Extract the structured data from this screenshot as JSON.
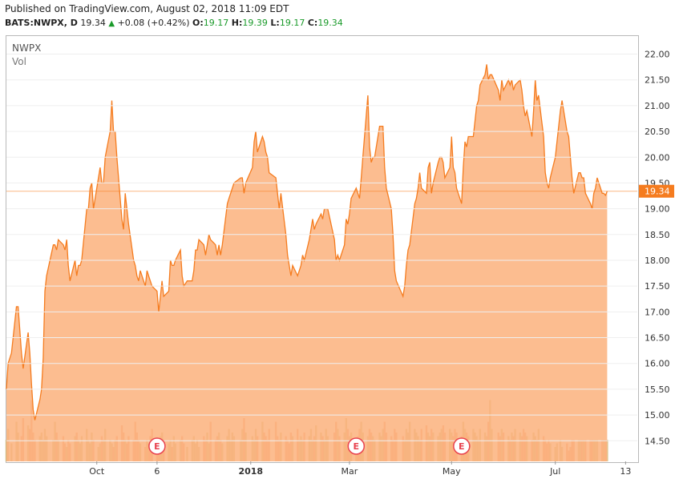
{
  "header": {
    "published": "Published on TradingView.com, August 02, 2018 11:09 EDT",
    "symbol": "BATS:NWPX, D",
    "last": "19.34",
    "arrow": "▲",
    "change": "+0.08 (+0.42%)",
    "o_label": "O:",
    "o_value": "19.17",
    "h_label": "H:",
    "h_value": "19.39",
    "l_label": "L:",
    "l_value": "19.17",
    "c_label": "C:",
    "c_value": "19.34"
  },
  "legend": {
    "symbol": "NWPX",
    "volume": "Vol"
  },
  "colors": {
    "line": "#f57c1f",
    "area": "#fbb27c",
    "vol_up": "#d3b878",
    "vol_down": "#f39a73",
    "label_bg": "#f57c1f",
    "earnings": "#e8434f"
  },
  "chart_data": {
    "type": "area",
    "title": "",
    "ylim": [
      14.1,
      22.35
    ],
    "yticks": [
      14.5,
      15.0,
      15.5,
      16.0,
      16.5,
      17.0,
      17.5,
      18.0,
      18.5,
      19.0,
      19.5,
      20.0,
      20.5,
      21.0,
      21.5,
      22.0
    ],
    "ytick_labels": [
      "14.50",
      "15.00",
      "15.50",
      "16.00",
      "16.50",
      "17.00",
      "17.50",
      "18.00",
      "18.50",
      "19.00",
      "19.50",
      "20.00",
      "20.50",
      "21.00",
      "21.50",
      "22.00"
    ],
    "x_start": "2017-08-08",
    "x_end": "2018-08-20",
    "x_ticks": [
      {
        "date": "2017-10-01",
        "label": "Oct",
        "bold": false
      },
      {
        "date": "2017-11-06",
        "label": "6",
        "bold": false
      },
      {
        "date": "2018-01-01",
        "label": "2018",
        "bold": true
      },
      {
        "date": "2018-03-01",
        "label": "Mar",
        "bold": false
      },
      {
        "date": "2018-05-01",
        "label": "May",
        "bold": false
      },
      {
        "date": "2018-07-02",
        "label": "Jul",
        "bold": false
      },
      {
        "date": "2018-08-13",
        "label": "13",
        "bold": false
      }
    ],
    "last_value": 19.34,
    "last_label": "19.34",
    "earnings_dates": [
      "2017-11-06",
      "2018-03-05",
      "2018-05-07"
    ],
    "earnings_label": "E",
    "price": [
      [
        "2017-08-08",
        15.5
      ],
      [
        "2017-08-09",
        16.0
      ],
      [
        "2017-08-11",
        16.2
      ],
      [
        "2017-08-14",
        17.1
      ],
      [
        "2017-08-15",
        17.1
      ],
      [
        "2017-08-17",
        16.2
      ],
      [
        "2017-08-18",
        15.9
      ],
      [
        "2017-08-21",
        16.6
      ],
      [
        "2017-08-22",
        16.2
      ],
      [
        "2017-08-23",
        15.6
      ],
      [
        "2017-08-24",
        15.1
      ],
      [
        "2017-08-25",
        14.9
      ],
      [
        "2017-08-28",
        15.3
      ],
      [
        "2017-08-29",
        15.5
      ],
      [
        "2017-08-30",
        16.1
      ],
      [
        "2017-08-31",
        17.4
      ],
      [
        "2017-09-01",
        17.7
      ],
      [
        "2017-09-05",
        18.3
      ],
      [
        "2017-09-06",
        18.3
      ],
      [
        "2017-09-07",
        18.2
      ],
      [
        "2017-09-08",
        18.4
      ],
      [
        "2017-09-11",
        18.3
      ],
      [
        "2017-09-12",
        18.2
      ],
      [
        "2017-09-13",
        18.4
      ],
      [
        "2017-09-14",
        17.9
      ],
      [
        "2017-09-15",
        17.6
      ],
      [
        "2017-09-18",
        18.0
      ],
      [
        "2017-09-19",
        17.7
      ],
      [
        "2017-09-20",
        17.9
      ],
      [
        "2017-09-21",
        17.9
      ],
      [
        "2017-09-22",
        18.0
      ],
      [
        "2017-09-25",
        19.0
      ],
      [
        "2017-09-26",
        19.0
      ],
      [
        "2017-09-27",
        19.4
      ],
      [
        "2017-09-28",
        19.5
      ],
      [
        "2017-09-29",
        19.0
      ],
      [
        "2017-10-02",
        19.6
      ],
      [
        "2017-10-03",
        19.8
      ],
      [
        "2017-10-04",
        19.5
      ],
      [
        "2017-10-05",
        19.5
      ],
      [
        "2017-10-06",
        20.0
      ],
      [
        "2017-10-09",
        20.5
      ],
      [
        "2017-10-10",
        21.1
      ],
      [
        "2017-10-11",
        20.5
      ],
      [
        "2017-10-12",
        20.5
      ],
      [
        "2017-10-13",
        20.0
      ],
      [
        "2017-10-16",
        18.8
      ],
      [
        "2017-10-17",
        18.6
      ],
      [
        "2017-10-18",
        19.3
      ],
      [
        "2017-10-19",
        19.0
      ],
      [
        "2017-10-20",
        18.7
      ],
      [
        "2017-10-23",
        18.0
      ],
      [
        "2017-10-24",
        17.9
      ],
      [
        "2017-10-25",
        17.7
      ],
      [
        "2017-10-26",
        17.6
      ],
      [
        "2017-10-27",
        17.8
      ],
      [
        "2017-10-30",
        17.5
      ],
      [
        "2017-10-31",
        17.8
      ],
      [
        "2017-11-01",
        17.7
      ],
      [
        "2017-11-02",
        17.6
      ],
      [
        "2017-11-03",
        17.5
      ],
      [
        "2017-11-06",
        17.4
      ],
      [
        "2017-11-07",
        17.0
      ],
      [
        "2017-11-08",
        17.3
      ],
      [
        "2017-11-09",
        17.6
      ],
      [
        "2017-11-10",
        17.3
      ],
      [
        "2017-11-13",
        17.4
      ],
      [
        "2017-11-14",
        18.0
      ],
      [
        "2017-11-15",
        17.9
      ],
      [
        "2017-11-16",
        17.9
      ],
      [
        "2017-11-17",
        18.0
      ],
      [
        "2017-11-20",
        18.2
      ],
      [
        "2017-11-21",
        17.7
      ],
      [
        "2017-11-22",
        17.5
      ],
      [
        "2017-11-24",
        17.6
      ],
      [
        "2017-11-27",
        17.6
      ],
      [
        "2017-11-28",
        17.8
      ],
      [
        "2017-11-29",
        18.2
      ],
      [
        "2017-11-30",
        18.2
      ],
      [
        "2017-12-01",
        18.4
      ],
      [
        "2017-12-04",
        18.3
      ],
      [
        "2017-12-05",
        18.1
      ],
      [
        "2017-12-06",
        18.3
      ],
      [
        "2017-12-07",
        18.5
      ],
      [
        "2017-12-08",
        18.4
      ],
      [
        "2017-12-11",
        18.3
      ],
      [
        "2017-12-12",
        18.1
      ],
      [
        "2017-12-13",
        18.3
      ],
      [
        "2017-12-14",
        18.1
      ],
      [
        "2017-12-15",
        18.3
      ],
      [
        "2017-12-18",
        19.1
      ],
      [
        "2017-12-19",
        19.2
      ],
      [
        "2017-12-20",
        19.3
      ],
      [
        "2017-12-21",
        19.4
      ],
      [
        "2017-12-22",
        19.5
      ],
      [
        "2017-12-26",
        19.6
      ],
      [
        "2017-12-27",
        19.6
      ],
      [
        "2017-12-28",
        19.3
      ],
      [
        "2017-12-29",
        19.5
      ],
      [
        "2018-01-02",
        19.8
      ],
      [
        "2018-01-03",
        20.3
      ],
      [
        "2018-01-04",
        20.5
      ],
      [
        "2018-01-05",
        20.1
      ],
      [
        "2018-01-08",
        20.4
      ],
      [
        "2018-01-09",
        20.3
      ],
      [
        "2018-01-10",
        20.1
      ],
      [
        "2018-01-11",
        20.0
      ],
      [
        "2018-01-12",
        19.7
      ],
      [
        "2018-01-16",
        19.6
      ],
      [
        "2018-01-17",
        19.3
      ],
      [
        "2018-01-18",
        19.0
      ],
      [
        "2018-01-19",
        19.3
      ],
      [
        "2018-01-22",
        18.5
      ],
      [
        "2018-01-23",
        18.1
      ],
      [
        "2018-01-24",
        17.9
      ],
      [
        "2018-01-25",
        17.7
      ],
      [
        "2018-01-26",
        17.9
      ],
      [
        "2018-01-29",
        17.7
      ],
      [
        "2018-01-30",
        17.8
      ],
      [
        "2018-01-31",
        17.9
      ],
      [
        "2018-02-01",
        18.1
      ],
      [
        "2018-02-02",
        18.0
      ],
      [
        "2018-02-05",
        18.4
      ],
      [
        "2018-02-06",
        18.6
      ],
      [
        "2018-02-07",
        18.8
      ],
      [
        "2018-02-08",
        18.6
      ],
      [
        "2018-02-09",
        18.7
      ],
      [
        "2018-02-12",
        18.9
      ],
      [
        "2018-02-13",
        18.8
      ],
      [
        "2018-02-14",
        19.0
      ],
      [
        "2018-02-15",
        19.0
      ],
      [
        "2018-02-16",
        19.0
      ],
      [
        "2018-02-20",
        18.4
      ],
      [
        "2018-02-21",
        18.0
      ],
      [
        "2018-02-22",
        18.1
      ],
      [
        "2018-02-23",
        18.0
      ],
      [
        "2018-02-26",
        18.3
      ],
      [
        "2018-02-27",
        18.8
      ],
      [
        "2018-02-28",
        18.7
      ],
      [
        "2018-03-01",
        18.9
      ],
      [
        "2018-03-02",
        19.2
      ],
      [
        "2018-03-05",
        19.4
      ],
      [
        "2018-03-06",
        19.3
      ],
      [
        "2018-03-07",
        19.2
      ],
      [
        "2018-03-08",
        19.6
      ],
      [
        "2018-03-09",
        20.0
      ],
      [
        "2018-03-12",
        21.2
      ],
      [
        "2018-03-13",
        20.2
      ],
      [
        "2018-03-14",
        19.9
      ],
      [
        "2018-03-15",
        20.0
      ],
      [
        "2018-03-16",
        20.0
      ],
      [
        "2018-03-19",
        20.6
      ],
      [
        "2018-03-20",
        20.6
      ],
      [
        "2018-03-21",
        20.6
      ],
      [
        "2018-03-22",
        19.8
      ],
      [
        "2018-03-23",
        19.4
      ],
      [
        "2018-03-26",
        19.0
      ],
      [
        "2018-03-27",
        18.5
      ],
      [
        "2018-03-28",
        17.8
      ],
      [
        "2018-03-29",
        17.6
      ],
      [
        "2018-04-02",
        17.3
      ],
      [
        "2018-04-03",
        17.5
      ],
      [
        "2018-04-04",
        17.9
      ],
      [
        "2018-04-05",
        18.2
      ],
      [
        "2018-04-06",
        18.3
      ],
      [
        "2018-04-09",
        19.1
      ],
      [
        "2018-04-10",
        19.2
      ],
      [
        "2018-04-11",
        19.4
      ],
      [
        "2018-04-12",
        19.7
      ],
      [
        "2018-04-13",
        19.4
      ],
      [
        "2018-04-16",
        19.3
      ],
      [
        "2018-04-17",
        19.8
      ],
      [
        "2018-04-18",
        19.9
      ],
      [
        "2018-04-19",
        19.3
      ],
      [
        "2018-04-20",
        19.5
      ],
      [
        "2018-04-23",
        19.9
      ],
      [
        "2018-04-24",
        20.0
      ],
      [
        "2018-04-25",
        20.0
      ],
      [
        "2018-04-26",
        19.9
      ],
      [
        "2018-04-27",
        19.6
      ],
      [
        "2018-04-30",
        19.8
      ],
      [
        "2018-05-01",
        20.4
      ],
      [
        "2018-05-02",
        19.8
      ],
      [
        "2018-05-03",
        19.7
      ],
      [
        "2018-05-04",
        19.4
      ],
      [
        "2018-05-07",
        19.1
      ],
      [
        "2018-05-08",
        19.8
      ],
      [
        "2018-05-09",
        20.3
      ],
      [
        "2018-05-10",
        20.2
      ],
      [
        "2018-05-11",
        20.4
      ],
      [
        "2018-05-14",
        20.4
      ],
      [
        "2018-05-15",
        20.7
      ],
      [
        "2018-05-16",
        21.0
      ],
      [
        "2018-05-17",
        21.1
      ],
      [
        "2018-05-18",
        21.4
      ],
      [
        "2018-05-21",
        21.6
      ],
      [
        "2018-05-22",
        21.8
      ],
      [
        "2018-05-23",
        21.5
      ],
      [
        "2018-05-24",
        21.6
      ],
      [
        "2018-05-25",
        21.6
      ],
      [
        "2018-05-29",
        21.3
      ],
      [
        "2018-05-30",
        21.1
      ],
      [
        "2018-05-31",
        21.5
      ],
      [
        "2018-06-01",
        21.3
      ],
      [
        "2018-06-04",
        21.5
      ],
      [
        "2018-06-05",
        21.4
      ],
      [
        "2018-06-06",
        21.5
      ],
      [
        "2018-06-07",
        21.3
      ],
      [
        "2018-06-08",
        21.4
      ],
      [
        "2018-06-11",
        21.5
      ],
      [
        "2018-06-12",
        21.3
      ],
      [
        "2018-06-13",
        21.0
      ],
      [
        "2018-06-14",
        20.8
      ],
      [
        "2018-06-15",
        20.9
      ],
      [
        "2018-06-18",
        20.4
      ],
      [
        "2018-06-19",
        20.9
      ],
      [
        "2018-06-20",
        21.5
      ],
      [
        "2018-06-21",
        21.1
      ],
      [
        "2018-06-22",
        21.2
      ],
      [
        "2018-06-25",
        20.4
      ],
      [
        "2018-06-26",
        19.7
      ],
      [
        "2018-06-27",
        19.5
      ],
      [
        "2018-06-28",
        19.4
      ],
      [
        "2018-06-29",
        19.6
      ],
      [
        "2018-07-02",
        20.0
      ],
      [
        "2018-07-03",
        20.3
      ],
      [
        "2018-07-05",
        20.9
      ],
      [
        "2018-07-06",
        21.1
      ],
      [
        "2018-07-09",
        20.5
      ],
      [
        "2018-07-10",
        20.4
      ],
      [
        "2018-07-11",
        20.0
      ],
      [
        "2018-07-12",
        19.6
      ],
      [
        "2018-07-13",
        19.3
      ],
      [
        "2018-07-16",
        19.7
      ],
      [
        "2018-07-17",
        19.7
      ],
      [
        "2018-07-18",
        19.6
      ],
      [
        "2018-07-19",
        19.6
      ],
      [
        "2018-07-20",
        19.3
      ],
      [
        "2018-07-23",
        19.1
      ],
      [
        "2018-07-24",
        19.0
      ],
      [
        "2018-07-25",
        19.3
      ],
      [
        "2018-07-26",
        19.4
      ],
      [
        "2018-07-27",
        19.6
      ],
      [
        "2018-07-30",
        19.3
      ],
      [
        "2018-07-31",
        19.3
      ],
      [
        "2018-08-01",
        19.26
      ],
      [
        "2018-08-02",
        19.34
      ]
    ],
    "volume_rel": [
      0.3,
      0.45,
      0.25,
      0.55,
      0.4,
      0.35,
      0.6,
      0.5,
      0.45,
      0.85,
      0.4,
      0.3,
      0.35,
      0.4,
      0.3,
      0.45,
      0.35,
      0.3,
      0.55,
      0.4,
      0.3,
      0.35,
      0.25,
      0.2,
      0.3,
      0.25,
      0.35,
      0.4,
      0.3,
      0.25,
      0.35,
      0.45,
      0.3,
      0.25,
      0.4,
      0.3,
      0.2,
      0.25,
      0.35,
      0.3,
      0.45,
      0.3,
      0.25,
      0.2,
      0.3,
      0.35,
      0.5,
      0.4,
      0.3,
      0.25,
      0.35,
      0.3,
      0.55,
      0.4,
      0.3,
      0.25,
      0.2,
      0.3,
      0.25,
      0.35,
      0.45,
      0.3,
      0.25,
      0.35,
      0.4,
      0.3,
      0.25,
      0.3,
      0.2,
      0.35,
      0.25,
      0.3,
      0.35,
      0.25,
      0.2,
      0.3,
      0.35,
      0.25,
      0.3,
      0.2,
      0.35,
      0.3,
      0.4,
      0.25,
      0.55,
      0.3,
      0.35,
      0.4,
      0.3,
      0.25,
      0.35,
      0.45,
      0.3,
      0.4,
      0.35,
      0.3,
      0.45,
      0.6,
      0.4,
      0.35,
      0.3,
      0.45,
      0.35,
      0.55,
      0.4,
      0.35,
      0.3,
      0.45,
      0.55,
      0.35,
      0.3,
      0.4,
      0.35,
      0.3,
      0.25,
      0.4,
      0.35,
      0.45,
      0.3,
      0.35,
      0.3,
      0.4,
      0.35,
      0.45,
      0.3,
      0.35,
      0.5,
      0.4,
      0.35,
      0.3,
      0.45,
      0.35,
      0.4,
      0.55,
      0.45,
      0.35,
      0.4,
      0.6,
      0.45,
      0.35,
      0.4,
      0.3,
      0.35,
      0.45,
      0.55,
      0.4,
      0.35,
      0.45,
      0.4,
      0.35,
      0.3,
      0.4,
      0.35,
      0.45,
      0.55,
      0.4,
      0.35,
      0.3,
      0.45,
      0.4,
      0.35,
      0.3,
      0.45,
      0.4,
      0.55,
      0.45,
      0.4,
      0.35,
      0.3,
      0.45,
      0.5,
      0.4,
      0.35,
      0.45,
      0.4,
      0.35,
      0.4,
      0.45,
      0.5,
      0.4,
      0.45,
      0.4,
      0.35,
      0.45,
      0.4,
      0.35,
      0.55,
      0.45,
      0.4,
      0.35,
      0.45,
      0.4,
      0.35,
      0.3,
      0.45,
      0.4,
      0.35,
      0.55,
      0.85,
      0.45,
      0.4,
      0.35,
      0.45,
      0.4,
      0.35,
      0.3,
      0.4,
      0.35,
      0.45,
      0.4,
      0.35,
      0.45,
      0.4,
      0.35,
      0.3,
      0.4,
      0.35,
      0.3,
      0.45,
      0.35,
      0.3,
      0.25,
      0.3,
      0.25,
      0.2,
      0.25,
      0.3,
      0.2,
      0.25,
      0.15,
      0.2
    ]
  }
}
